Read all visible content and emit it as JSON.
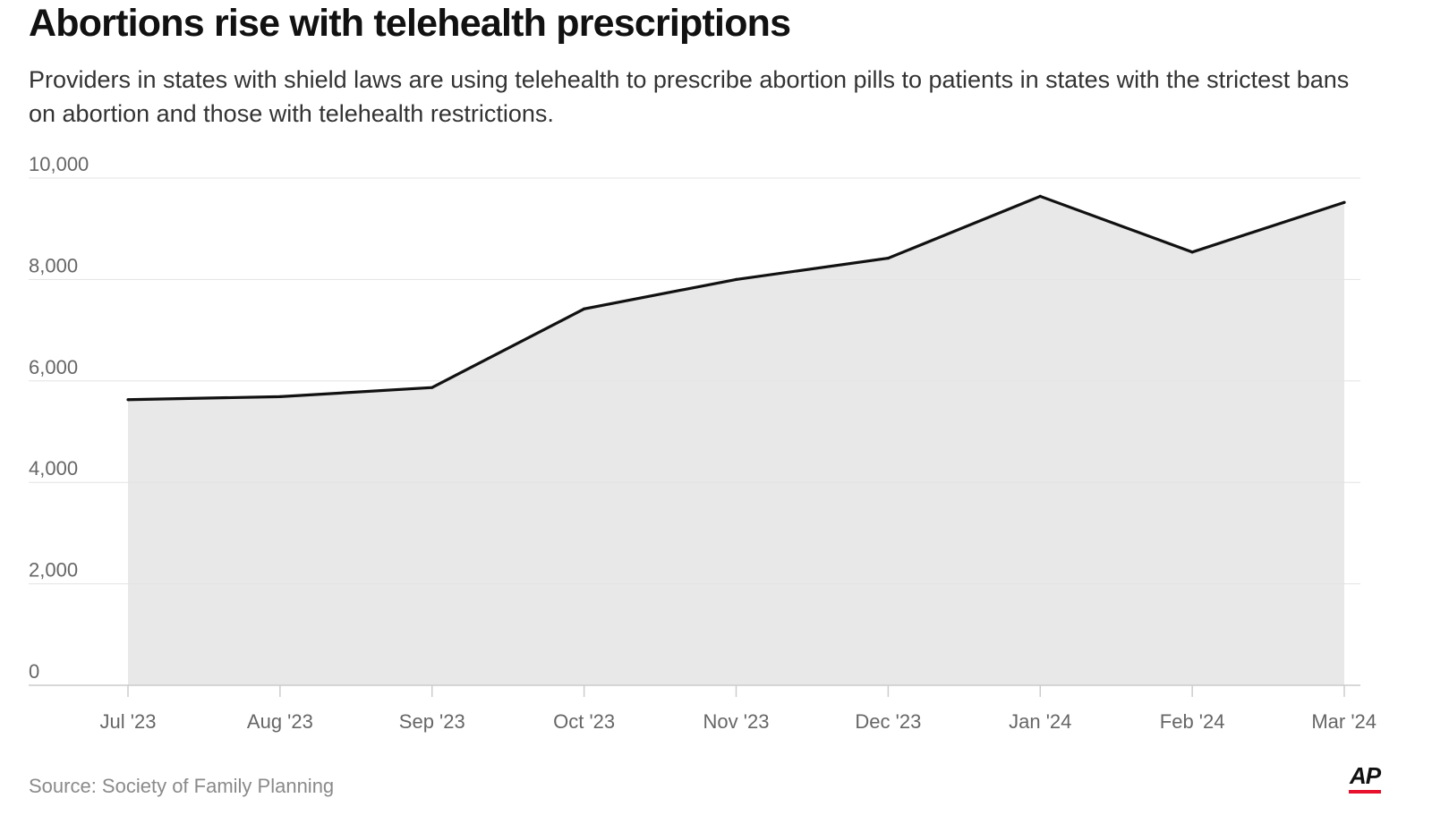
{
  "header": {
    "title": "Abortions rise with telehealth prescriptions",
    "subtitle": "Providers in states with shield laws are using telehealth to prescribe abortion pills to patients in states with the strictest bans on abortion and those with telehealth restrictions."
  },
  "footer": {
    "source": "Source: Society of Family Planning",
    "logo_text": "AP"
  },
  "colors": {
    "line": "#111111",
    "area_fill": "#e8e8e8",
    "grid": "#e3e3e3",
    "axis": "#cccccc",
    "tick_label": "#666666",
    "logo_accent": "#e8112d"
  },
  "chart_data": {
    "type": "area",
    "title": "Abortions rise with telehealth prescriptions",
    "xlabel": "",
    "ylabel": "",
    "categories": [
      "Jul '23",
      "Aug '23",
      "Sep '23",
      "Oct '23",
      "Nov '23",
      "Dec '23",
      "Jan '24",
      "Feb '24",
      "Mar '24"
    ],
    "values": [
      5630,
      5690,
      5870,
      7420,
      8000,
      8420,
      9640,
      8540,
      9520
    ],
    "ylim": [
      0,
      10000
    ],
    "yticks": [
      0,
      2000,
      4000,
      6000,
      8000,
      10000
    ],
    "ytick_labels": [
      "0",
      "2,000",
      "4,000",
      "6,000",
      "8,000",
      "10,000"
    ],
    "grid": true,
    "legend": "none"
  }
}
